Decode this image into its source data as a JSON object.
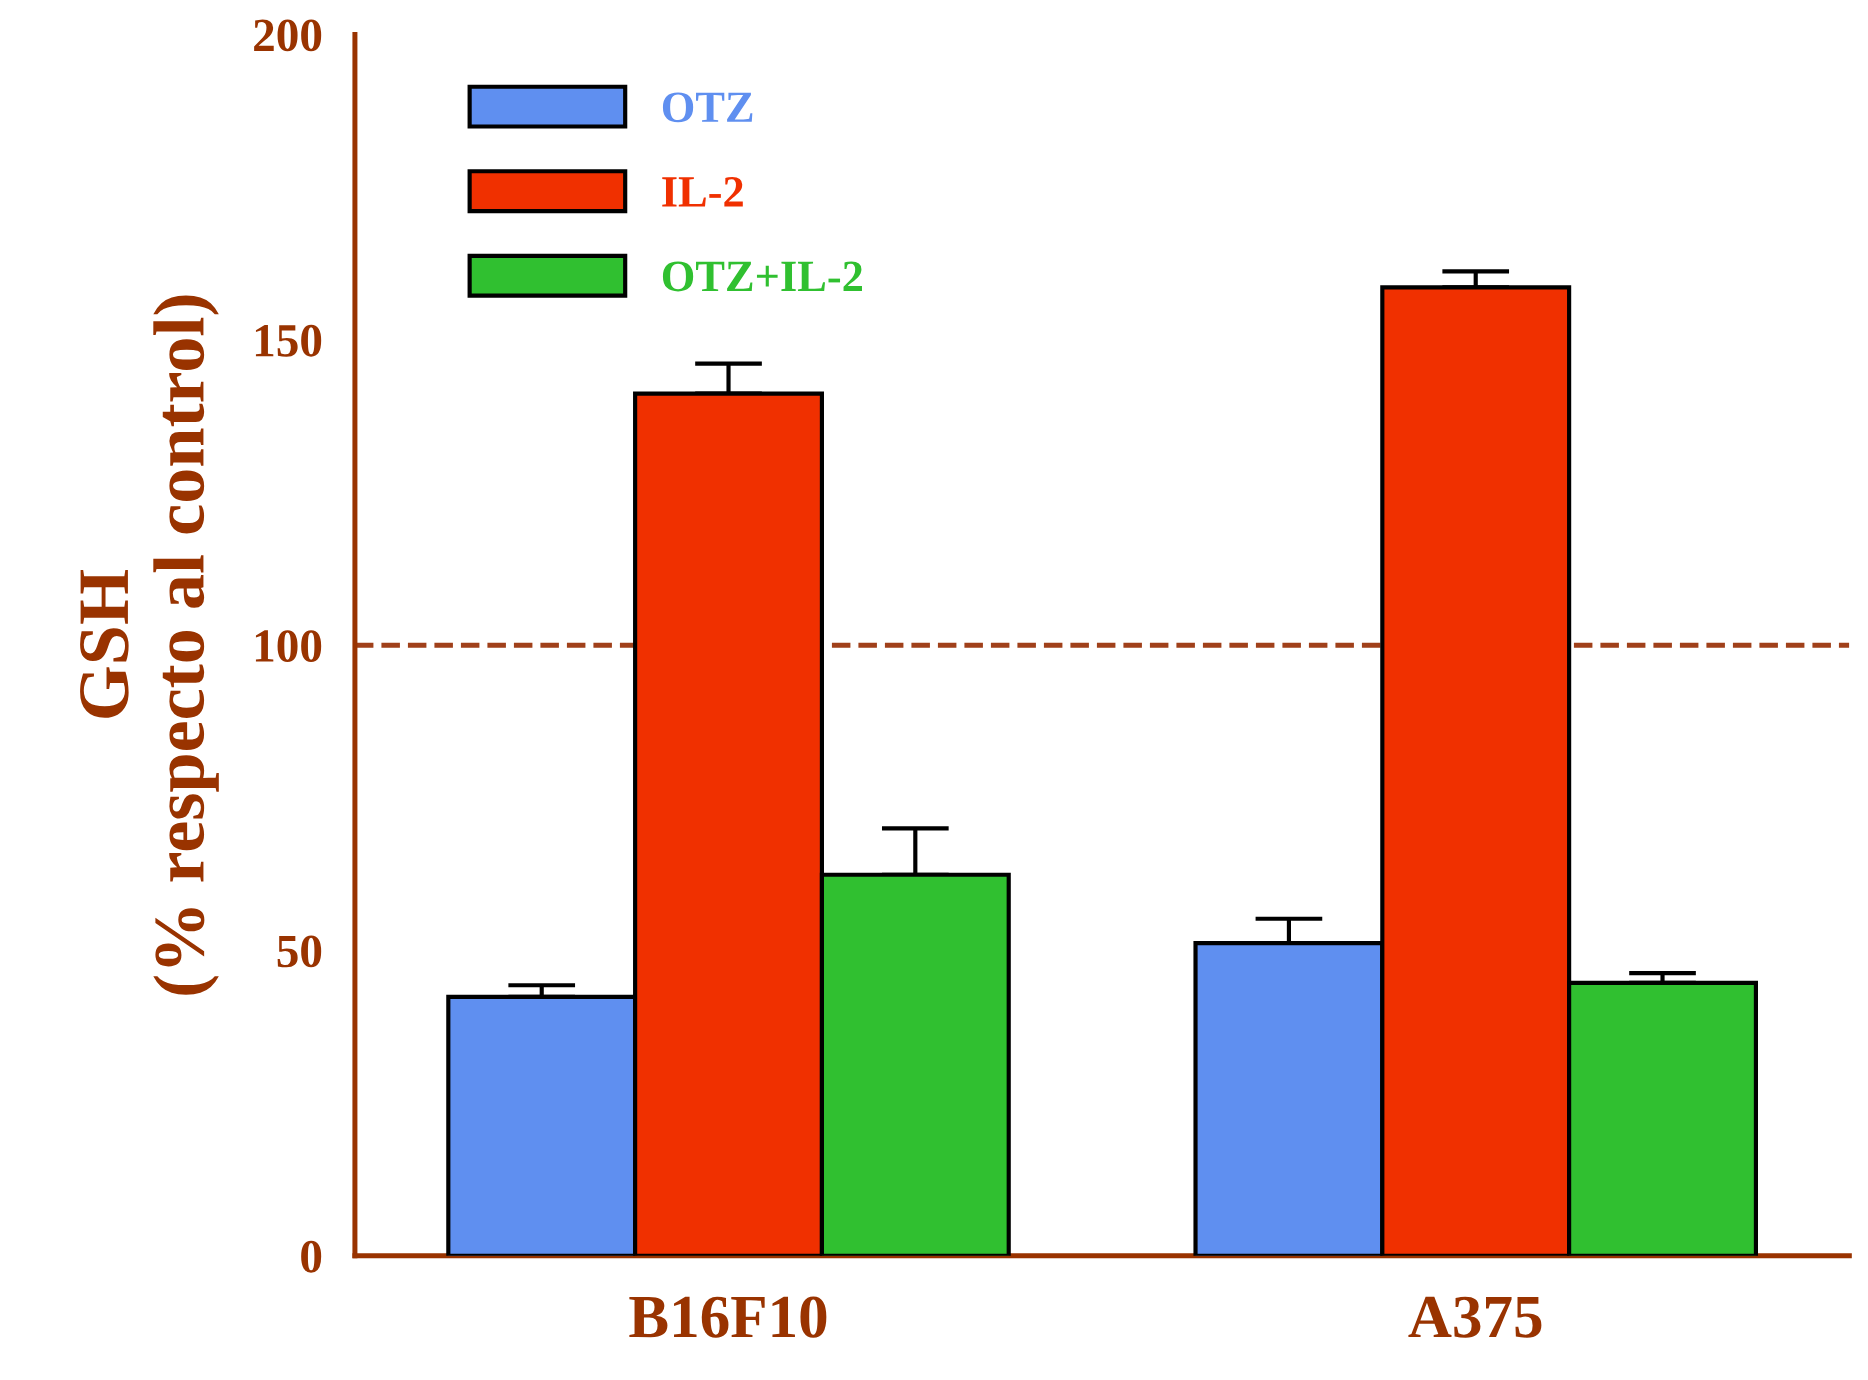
{
  "chart_data": {
    "type": "bar",
    "ylabel": "GSH\n(% respecto al control)",
    "categories": [
      "B16F10",
      "A375"
    ],
    "series": [
      {
        "name": "OTZ",
        "color": "#5f8ff0",
        "values": [
          42.4,
          51.2
        ],
        "errors": [
          [
            42.4,
            44.3
          ],
          [
            51.2,
            55.2
          ]
        ]
      },
      {
        "name": "IL-2",
        "color": "#f03000",
        "values": [
          141.2,
          158.6
        ],
        "errors": [
          [
            141.2,
            146.1
          ],
          [
            158.6,
            161.2
          ]
        ]
      },
      {
        "name": "OTZ+IL-2",
        "color": "#30c030",
        "values": [
          62.4,
          44.7
        ],
        "errors": [
          [
            62.4,
            70.0
          ],
          [
            44.7,
            46.3
          ]
        ]
      }
    ],
    "ylim": [
      0,
      200
    ],
    "yticks": [
      0,
      50,
      100,
      150,
      200
    ],
    "ref_lines": [
      {
        "axis": "y",
        "value": 100,
        "color": "#a0401a",
        "line_style": "dashed"
      }
    ],
    "legend": "top left",
    "grid": false
  }
}
